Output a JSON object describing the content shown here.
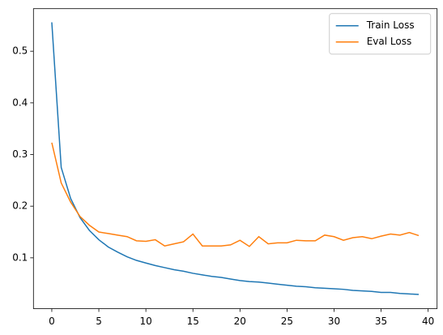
{
  "chart_data": {
    "type": "line",
    "x": [
      0,
      1,
      2,
      3,
      4,
      5,
      6,
      7,
      8,
      9,
      10,
      11,
      12,
      13,
      14,
      15,
      16,
      17,
      18,
      19,
      20,
      21,
      22,
      23,
      24,
      25,
      26,
      27,
      28,
      29,
      30,
      31,
      32,
      33,
      34,
      35,
      36,
      37,
      38,
      39
    ],
    "series": [
      {
        "name": "Train Loss",
        "color": "#1f77b4",
        "values": [
          0.556,
          0.275,
          0.215,
          0.178,
          0.153,
          0.135,
          0.121,
          0.111,
          0.102,
          0.095,
          0.09,
          0.085,
          0.081,
          0.077,
          0.074,
          0.07,
          0.067,
          0.064,
          0.062,
          0.059,
          0.056,
          0.054,
          0.053,
          0.051,
          0.049,
          0.047,
          0.045,
          0.044,
          0.042,
          0.041,
          0.04,
          0.039,
          0.037,
          0.036,
          0.035,
          0.033,
          0.033,
          0.031,
          0.03,
          0.029
        ]
      },
      {
        "name": "Eval Loss",
        "color": "#ff7f0e",
        "values": [
          0.323,
          0.245,
          0.208,
          0.18,
          0.163,
          0.15,
          0.147,
          0.144,
          0.141,
          0.133,
          0.132,
          0.135,
          0.123,
          0.127,
          0.131,
          0.146,
          0.123,
          0.123,
          0.123,
          0.125,
          0.134,
          0.122,
          0.141,
          0.127,
          0.129,
          0.129,
          0.134,
          0.133,
          0.133,
          0.144,
          0.141,
          0.134,
          0.139,
          0.141,
          0.137,
          0.142,
          0.146,
          0.144,
          0.149,
          0.143
        ]
      }
    ],
    "xlim": [
      -1.95,
      40.95
    ],
    "xticks": [
      0,
      5,
      10,
      15,
      20,
      25,
      30,
      35,
      40
    ],
    "ylim": [
      0.0016,
      0.5824
    ],
    "yticks": [
      0.1,
      0.2,
      0.3,
      0.4,
      0.5
    ],
    "legend": "upper right"
  }
}
